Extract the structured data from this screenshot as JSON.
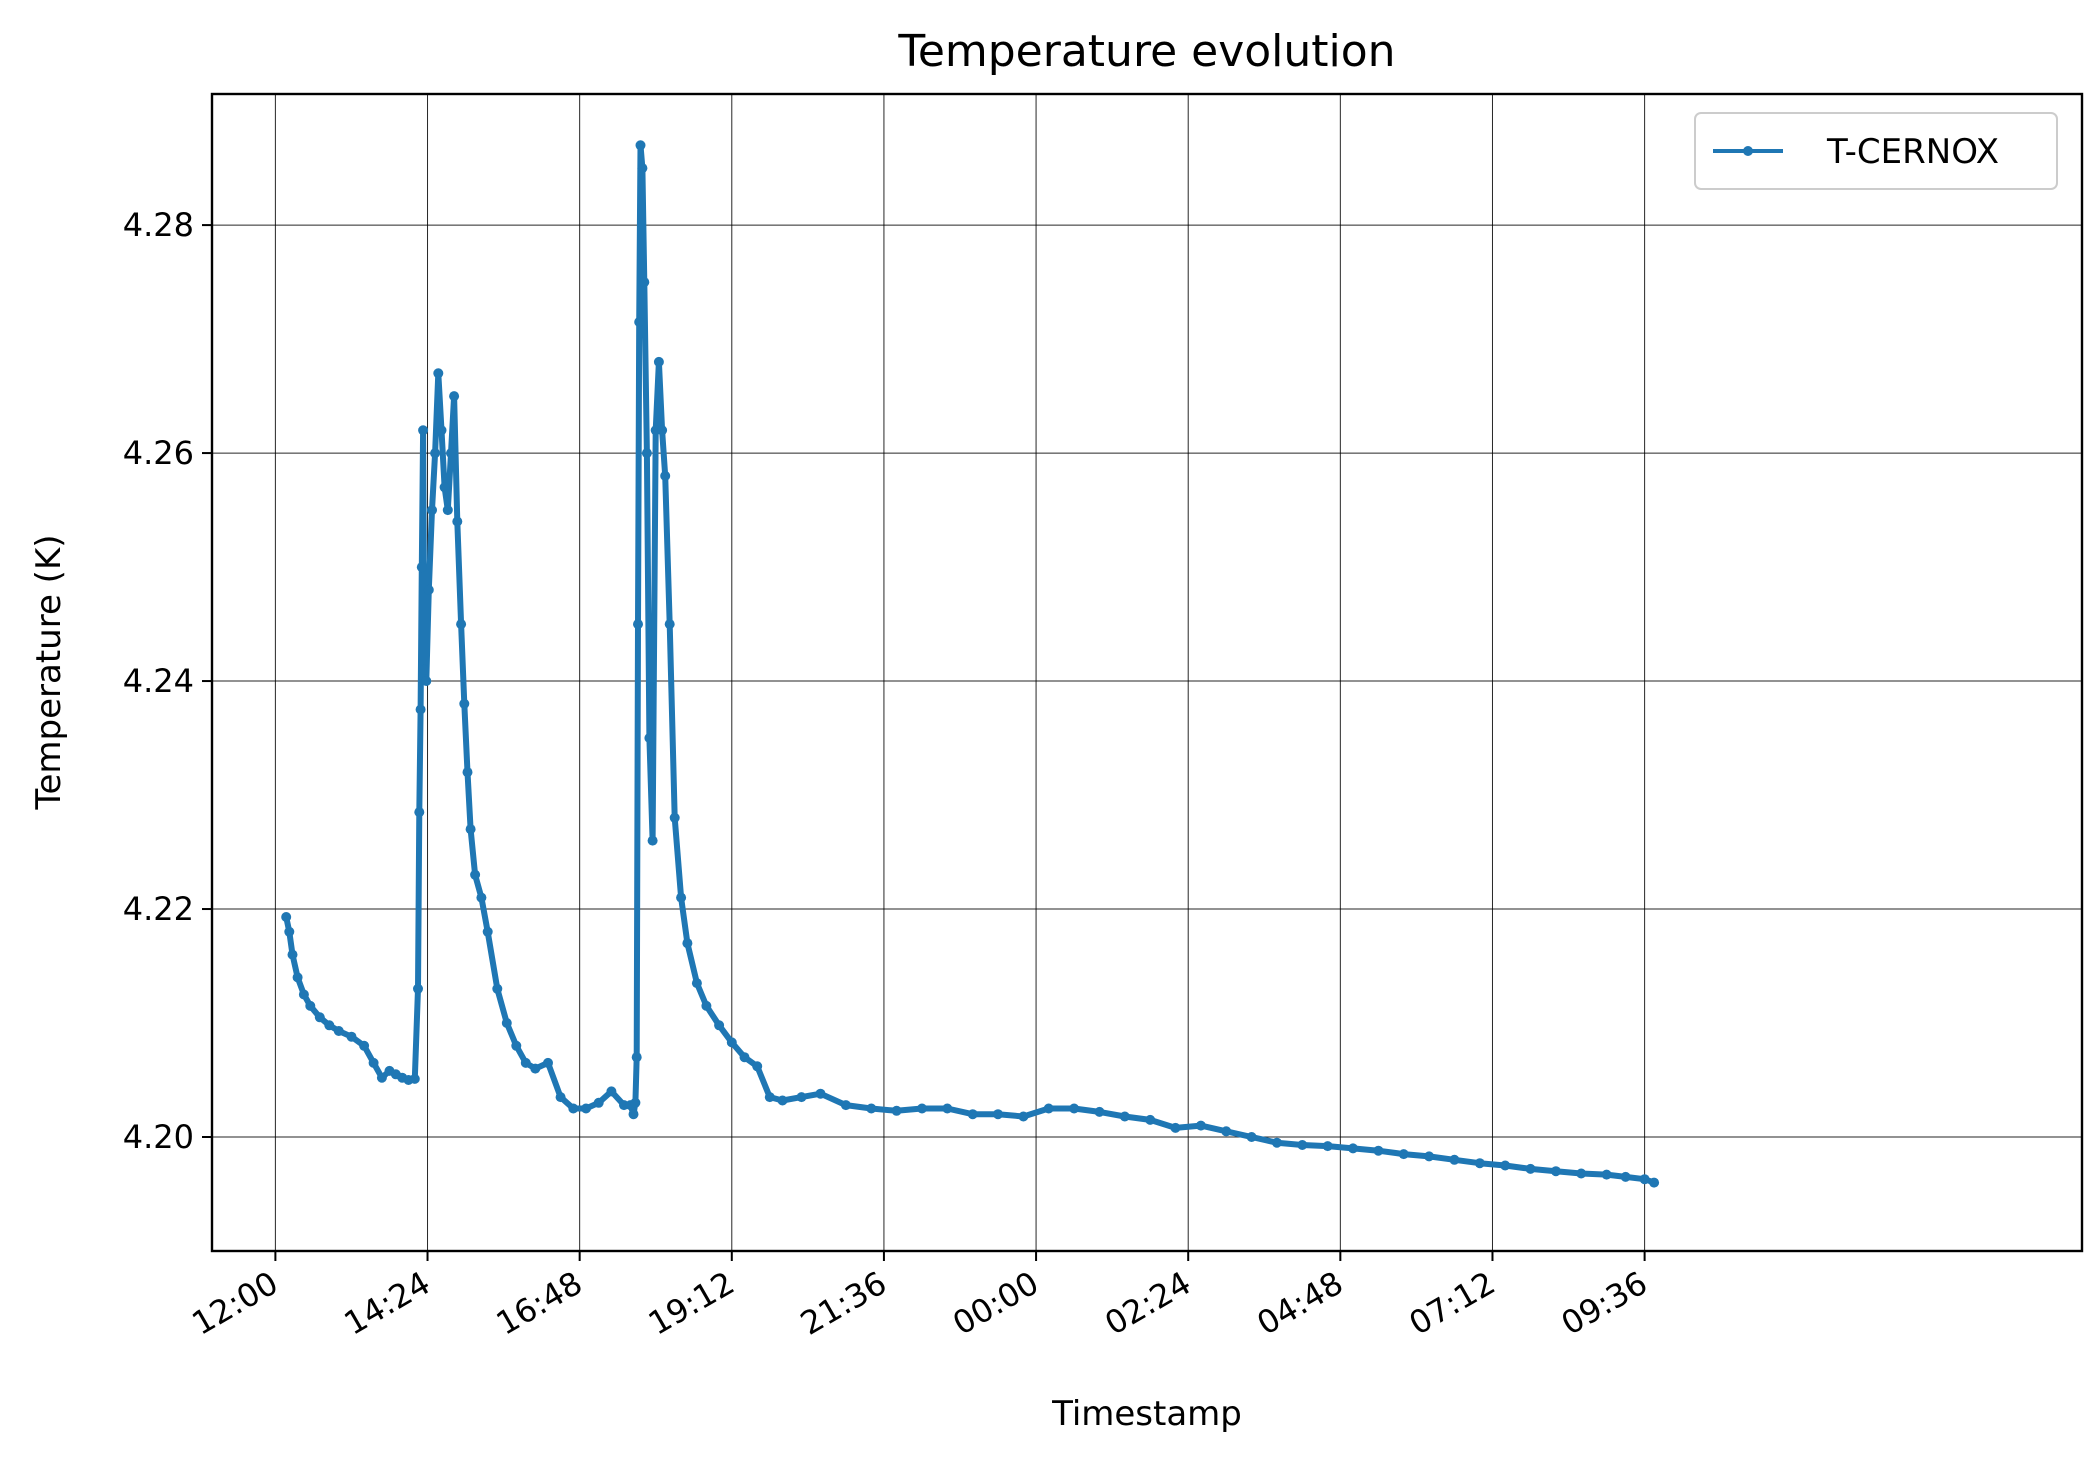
{
  "chart_data": {
    "type": "line",
    "title": "Temperature evolution",
    "xlabel": "Timestamp",
    "ylabel": "Temperature (K)",
    "x_unit": "hours from 12:00",
    "xlim": [
      -1.0,
      28.5
    ],
    "ylim": [
      4.19,
      4.2915
    ],
    "grid": true,
    "legend_position": "top-right",
    "x_ticks": [
      {
        "value": 0.0,
        "label": "12:00"
      },
      {
        "value": 2.4,
        "label": "14:24"
      },
      {
        "value": 4.8,
        "label": "16:48"
      },
      {
        "value": 7.2,
        "label": "19:12"
      },
      {
        "value": 9.6,
        "label": "21:36"
      },
      {
        "value": 12.0,
        "label": "00:00"
      },
      {
        "value": 14.4,
        "label": "02:24"
      },
      {
        "value": 16.8,
        "label": "04:48"
      },
      {
        "value": 19.2,
        "label": "07:12"
      },
      {
        "value": 21.6,
        "label": "09:36"
      }
    ],
    "y_ticks": [
      {
        "value": 4.2,
        "label": "4.20"
      },
      {
        "value": 4.22,
        "label": "4.22"
      },
      {
        "value": 4.24,
        "label": "4.24"
      },
      {
        "value": 4.26,
        "label": "4.26"
      },
      {
        "value": 4.28,
        "label": "4.28"
      }
    ],
    "series": [
      {
        "name": "T-CERNOX",
        "color": "#1f77b4",
        "x": [
          0.17,
          0.22,
          0.27,
          0.35,
          0.45,
          0.55,
          0.7,
          0.85,
          1.0,
          1.2,
          1.4,
          1.55,
          1.68,
          1.8,
          1.9,
          2.0,
          2.1,
          2.2,
          2.25,
          2.27,
          2.29,
          2.31,
          2.33,
          2.35,
          2.38,
          2.42,
          2.47,
          2.52,
          2.57,
          2.62,
          2.67,
          2.72,
          2.77,
          2.82,
          2.87,
          2.93,
          2.98,
          3.03,
          3.08,
          3.15,
          3.25,
          3.35,
          3.5,
          3.65,
          3.8,
          3.95,
          4.1,
          4.3,
          4.5,
          4.7,
          4.9,
          5.1,
          5.3,
          5.5,
          5.6,
          5.65,
          5.68,
          5.7,
          5.72,
          5.74,
          5.76,
          5.79,
          5.82,
          5.86,
          5.9,
          5.95,
          6.0,
          6.05,
          6.1,
          6.15,
          6.22,
          6.3,
          6.4,
          6.5,
          6.65,
          6.8,
          7.0,
          7.2,
          7.4,
          7.6,
          7.8,
          8.0,
          8.3,
          8.6,
          9.0,
          9.4,
          9.8,
          10.2,
          10.6,
          11.0,
          11.4,
          11.8,
          12.2,
          12.6,
          13.0,
          13.4,
          13.8,
          14.2,
          14.6,
          15.0,
          15.4,
          15.8,
          16.2,
          16.6,
          17.0,
          17.4,
          17.8,
          18.2,
          18.6,
          19.0,
          19.4,
          19.8,
          20.2,
          20.6,
          21.0,
          21.3,
          21.6,
          21.75
        ],
        "y": [
          4.2193,
          4.218,
          4.216,
          4.214,
          4.2125,
          4.2115,
          4.2105,
          4.2098,
          4.2093,
          4.2088,
          4.208,
          4.2065,
          4.2052,
          4.2058,
          4.2055,
          4.2052,
          4.205,
          4.2051,
          4.213,
          4.2285,
          4.2375,
          4.25,
          4.262,
          4.241,
          4.24,
          4.248,
          4.255,
          4.26,
          4.267,
          4.262,
          4.257,
          4.255,
          4.26,
          4.265,
          4.254,
          4.245,
          4.238,
          4.232,
          4.227,
          4.223,
          4.221,
          4.218,
          4.213,
          4.21,
          4.208,
          4.2065,
          4.206,
          4.2065,
          4.2035,
          4.2025,
          4.2025,
          4.203,
          4.204,
          4.2028,
          4.2028,
          4.202,
          4.203,
          4.207,
          4.245,
          4.2715,
          4.287,
          4.285,
          4.275,
          4.26,
          4.235,
          4.226,
          4.262,
          4.268,
          4.262,
          4.258,
          4.245,
          4.228,
          4.221,
          4.217,
          4.2135,
          4.2115,
          4.2098,
          4.2083,
          4.207,
          4.2062,
          4.2035,
          4.2032,
          4.2035,
          4.2038,
          4.2028,
          4.2025,
          4.2023,
          4.2025,
          4.2025,
          4.202,
          4.202,
          4.2018,
          4.2025,
          4.2025,
          4.2022,
          4.2018,
          4.2015,
          4.2008,
          4.201,
          4.2005,
          4.2,
          4.1995,
          4.1993,
          4.1992,
          4.199,
          4.1988,
          4.1985,
          4.1983,
          4.198,
          4.1977,
          4.1975,
          4.1972,
          4.197,
          4.1968,
          4.1967,
          4.1965,
          4.1963,
          4.196
        ]
      }
    ]
  }
}
